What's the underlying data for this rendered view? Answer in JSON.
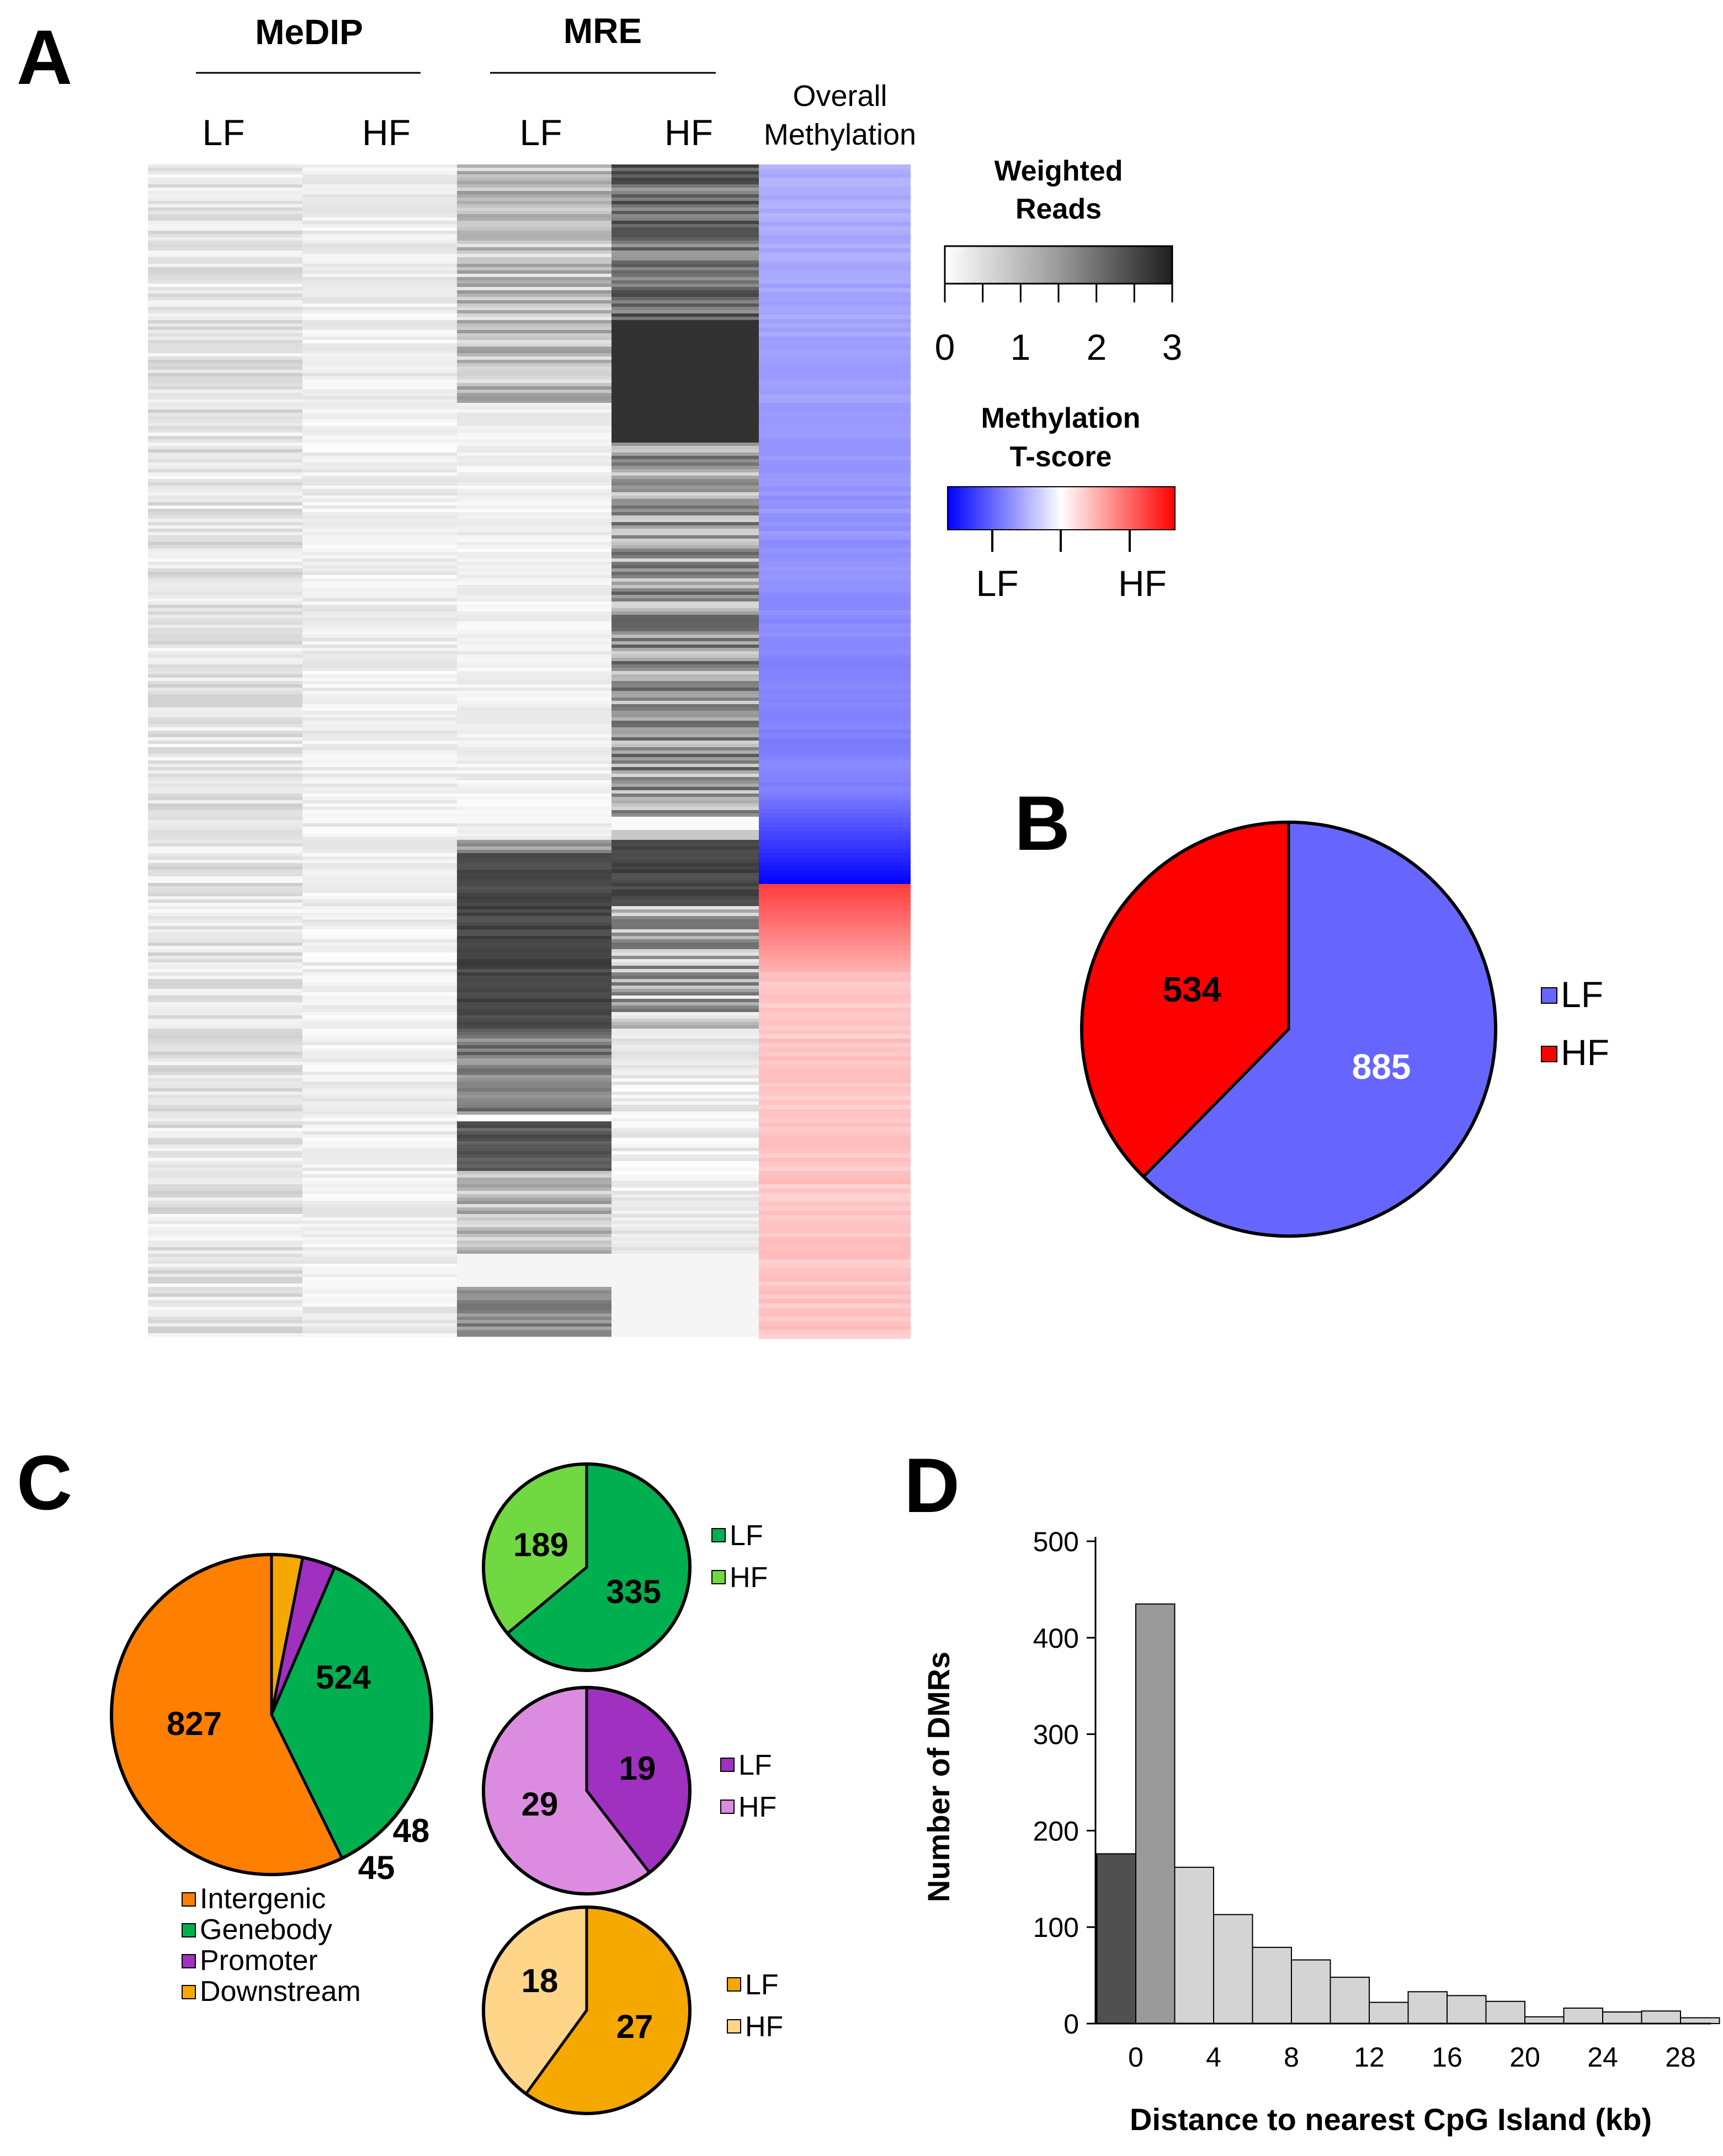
{
  "panels": {
    "a": "A",
    "b": "B",
    "c": "C",
    "d": "D"
  },
  "heatmap": {
    "group_headers": [
      "MeDIP",
      "MRE"
    ],
    "column_labels": [
      "LF",
      "HF",
      "LF",
      "HF"
    ],
    "overall_label_lines": [
      "Overall",
      "Methylation"
    ],
    "weighted_reads": {
      "title_lines": [
        "Weighted",
        "Reads"
      ],
      "ticks": [
        "0",
        "1",
        "2",
        "3"
      ]
    },
    "tscore": {
      "title_lines": [
        "Methylation",
        "T-score"
      ],
      "ends": [
        "LF",
        "HF"
      ],
      "colors": [
        "#0000ff",
        "#ffffff",
        "#ff0000"
      ]
    }
  },
  "colors": {
    "lf_blue": "#6666ff",
    "hf_red": "#ff0000",
    "intergenic": "#ff7f00",
    "genebody": "#00b050",
    "genebody_light": "#70d840",
    "promoter": "#a030c0",
    "promoter_light": "#dc8ce0",
    "downstream": "#f5a800",
    "downstream_light": "#ffd58a",
    "bar_dark": "#505050",
    "bar_mid": "#9a9a9a",
    "bar_light": "#d4d4d4"
  },
  "chart_data": [
    {
      "panel": "B",
      "type": "pie",
      "slices": [
        {
          "label": "LF",
          "value": 885
        },
        {
          "label": "HF",
          "value": 534
        }
      ],
      "legend": [
        "LF",
        "HF"
      ]
    },
    {
      "panel": "C",
      "type": "pie",
      "slices": [
        {
          "label": "Intergenic",
          "value": 827
        },
        {
          "label": "Genebody",
          "value": 524
        },
        {
          "label": "Promoter",
          "value": 48
        },
        {
          "label": "Downstream",
          "value": 45
        }
      ],
      "legend": [
        "Intergenic",
        "Genebody",
        "Promoter",
        "Downstream"
      ]
    },
    {
      "panel": "C",
      "type": "pie",
      "group": "Genebody",
      "slices": [
        {
          "label": "LF",
          "value": 335
        },
        {
          "label": "HF",
          "value": 189
        }
      ],
      "legend": [
        "LF",
        "HF"
      ]
    },
    {
      "panel": "C",
      "type": "pie",
      "group": "Promoter",
      "slices": [
        {
          "label": "LF",
          "value": 19
        },
        {
          "label": "HF",
          "value": 29
        }
      ],
      "legend": [
        "LF",
        "HF"
      ]
    },
    {
      "panel": "C",
      "type": "pie",
      "group": "Downstream",
      "slices": [
        {
          "label": "LF",
          "value": 27
        },
        {
          "label": "HF",
          "value": 18
        }
      ],
      "legend": [
        "LF",
        "HF"
      ]
    },
    {
      "panel": "D",
      "type": "bar",
      "xlabel": "Distance to nearest CpG Island (kb)",
      "ylabel": "Number of DMRs",
      "ylim": [
        0,
        500
      ],
      "yticks": [
        0,
        100,
        200,
        300,
        400,
        500
      ],
      "xticks": [
        "0",
        "4",
        "8",
        "12",
        "16",
        "20",
        "24",
        "28"
      ],
      "bins": [
        {
          "x": -1,
          "value": 176,
          "shade": "dark"
        },
        {
          "x": 1,
          "value": 435,
          "shade": "mid"
        },
        {
          "x": 3,
          "value": 162,
          "shade": "light"
        },
        {
          "x": 5,
          "value": 113,
          "shade": "light"
        },
        {
          "x": 7,
          "value": 79,
          "shade": "light"
        },
        {
          "x": 9,
          "value": 66,
          "shade": "light"
        },
        {
          "x": 11,
          "value": 48,
          "shade": "light"
        },
        {
          "x": 13,
          "value": 22,
          "shade": "light"
        },
        {
          "x": 15,
          "value": 33,
          "shade": "light"
        },
        {
          "x": 17,
          "value": 29,
          "shade": "light"
        },
        {
          "x": 19,
          "value": 23,
          "shade": "light"
        },
        {
          "x": 21,
          "value": 7,
          "shade": "light"
        },
        {
          "x": 23,
          "value": 16,
          "shade": "light"
        },
        {
          "x": 25,
          "value": 12,
          "shade": "light"
        },
        {
          "x": 27,
          "value": 13,
          "shade": "light"
        },
        {
          "x": 29,
          "value": 6,
          "shade": "light"
        }
      ]
    }
  ]
}
